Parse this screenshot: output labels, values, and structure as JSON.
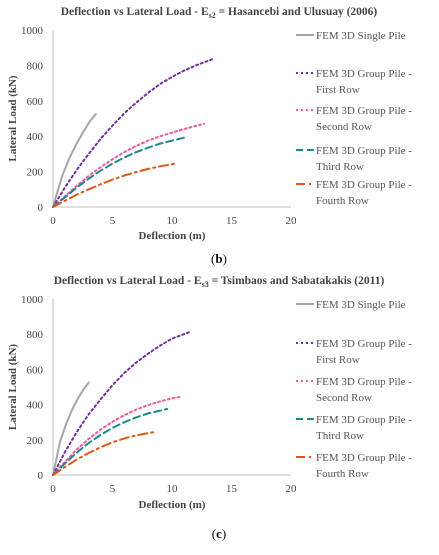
{
  "chart_data": [
    {
      "type": "line",
      "title_main": "Deflection vs Lateral Load - E",
      "title_sub": "s2",
      "title_rest": " = Hasancebi and Ulusuay (2006)",
      "xlabel": "Deflection (m)",
      "ylabel": "Lateral Load (kN)",
      "xlim": [
        0,
        20
      ],
      "ylim": [
        0,
        1000
      ],
      "xticks": [
        "0",
        "5",
        "10",
        "15",
        "20"
      ],
      "yticks": [
        "0",
        "200",
        "400",
        "600",
        "800",
        "1000"
      ],
      "legend_position": "right",
      "caption_open": "(",
      "caption_letter": "b",
      "caption_close": ")",
      "series": [
        {
          "name_lines": [
            "FEM 3D Single Pile"
          ],
          "color": "#a6a6a6",
          "style": "solid",
          "x": [
            0,
            0.3,
            0.8,
            1.4,
            2.0,
            2.6,
            3.1,
            3.6
          ],
          "y": [
            0,
            70,
            180,
            280,
            360,
            430,
            485,
            525
          ]
        },
        {
          "name_lines": [
            "FEM 3D Group Pile -",
            "First Row"
          ],
          "color": "#7030a0",
          "style": "dot",
          "x": [
            0,
            1,
            2,
            3,
            4,
            5,
            6,
            7,
            8,
            9,
            10,
            11,
            12,
            13.4
          ],
          "y": [
            0,
            110,
            210,
            300,
            385,
            460,
            530,
            590,
            645,
            695,
            735,
            770,
            800,
            835
          ]
        },
        {
          "name_lines": [
            "FEM 3D Group Pile -",
            "Second Row"
          ],
          "color": "#f25a9e",
          "style": "dot",
          "x": [
            0,
            1,
            2,
            3,
            4,
            5,
            6,
            7,
            8,
            9,
            10,
            11,
            12,
            12.7
          ],
          "y": [
            0,
            60,
            120,
            175,
            225,
            270,
            310,
            345,
            375,
            400,
            420,
            440,
            458,
            470
          ]
        },
        {
          "name_lines": [
            "FEM 3D Group Pile -",
            "Third Row"
          ],
          "color": "#1c8a8a",
          "style": "dash",
          "x": [
            0,
            1,
            2,
            3,
            4,
            5,
            6,
            7,
            8,
            9,
            10,
            11.2
          ],
          "y": [
            0,
            55,
            110,
            160,
            205,
            245,
            280,
            310,
            335,
            358,
            375,
            395
          ]
        },
        {
          "name_lines": [
            "FEM 3D Group Pile -",
            "Fourth Row"
          ],
          "color": "#e0561a",
          "style": "dashdot",
          "x": [
            0,
            1,
            2,
            3,
            4,
            5,
            6,
            7,
            8,
            9,
            10.3
          ],
          "y": [
            0,
            35,
            70,
            100,
            128,
            155,
            178,
            198,
            215,
            230,
            245
          ]
        }
      ]
    },
    {
      "type": "line",
      "title_main": "Deflection vs Lateral Load - E",
      "title_sub": "s3",
      "title_rest": " = Tsimbaos and Sabatakakis (2011)",
      "xlabel": "Deflection (m)",
      "ylabel": "Lateral Load (kN)",
      "xlim": [
        0,
        20
      ],
      "ylim": [
        0,
        1000
      ],
      "xticks": [
        "0",
        "5",
        "10",
        "15",
        "20"
      ],
      "yticks": [
        "0",
        "200",
        "400",
        "600",
        "800",
        "1000"
      ],
      "legend_position": "right",
      "caption_open": "(",
      "caption_letter": "c",
      "caption_close": ")",
      "series": [
        {
          "name_lines": [
            "FEM 3D Single Pile"
          ],
          "color": "#a6a6a6",
          "style": "solid",
          "x": [
            0,
            0.25,
            0.6,
            1.1,
            1.6,
            2.1,
            2.6,
            3.0
          ],
          "y": [
            0,
            80,
            190,
            290,
            370,
            435,
            490,
            525
          ]
        },
        {
          "name_lines": [
            "FEM 3D Group Pile -",
            "First Row"
          ],
          "color": "#7030a0",
          "style": "dot",
          "x": [
            0,
            1,
            2,
            3,
            4,
            5,
            6,
            7,
            8,
            9,
            10,
            11.4
          ],
          "y": [
            0,
            130,
            245,
            345,
            430,
            510,
            580,
            640,
            690,
            735,
            775,
            810
          ]
        },
        {
          "name_lines": [
            "FEM 3D Group Pile -",
            "Second Row"
          ],
          "color": "#f25a9e",
          "style": "dot",
          "x": [
            0,
            1,
            2,
            3,
            4,
            5,
            6,
            7,
            8,
            9,
            10,
            10.8
          ],
          "y": [
            0,
            75,
            145,
            205,
            258,
            302,
            340,
            372,
            398,
            418,
            435,
            445
          ]
        },
        {
          "name_lines": [
            "FEM 3D Group Pile -",
            "Third Row"
          ],
          "color": "#1c8a8a",
          "style": "dash",
          "x": [
            0,
            1,
            2,
            3,
            4,
            5,
            6,
            7,
            8,
            9.6
          ],
          "y": [
            0,
            65,
            128,
            182,
            228,
            268,
            300,
            328,
            350,
            375
          ]
        },
        {
          "name_lines": [
            "FEM 3D Group Pile -",
            "Fourth Row"
          ],
          "color": "#e0561a",
          "style": "dashdot",
          "x": [
            0,
            1,
            2,
            3,
            4,
            5,
            6,
            7,
            8,
            8.6
          ],
          "y": [
            0,
            45,
            88,
            125,
            158,
            186,
            208,
            225,
            238,
            245
          ]
        }
      ]
    }
  ]
}
